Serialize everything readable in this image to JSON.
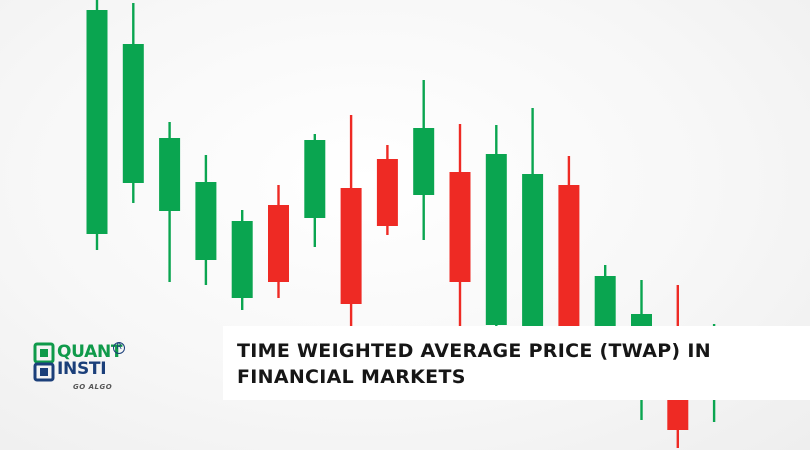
{
  "banner": {
    "title_line1": "TIME WEIGHTED AVERAGE PRICE (TWAP) IN",
    "title_line2": "FINANCIAL MARKETS"
  },
  "logo": {
    "word1": "QUANT",
    "word2": "INSTI",
    "tagline": "GO ALGO",
    "registered": "R"
  },
  "colors": {
    "bull": "#0aa550",
    "bear": "#ee2a24",
    "logo_green": "#0f9a4a",
    "logo_blue": "#1b3f7a",
    "title_text": "#161616"
  },
  "chart_data": {
    "type": "candlestick",
    "ylim": [
      0,
      450
    ],
    "candles": [
      {
        "dir": "up",
        "open": 216,
        "close": 440,
        "high": 460,
        "low": 200
      },
      {
        "dir": "up",
        "open": 267,
        "close": 406,
        "high": 447,
        "low": 247
      },
      {
        "dir": "up",
        "open": 239,
        "close": 312,
        "high": 328,
        "low": 168
      },
      {
        "dir": "up",
        "open": 190,
        "close": 268,
        "high": 295,
        "low": 165
      },
      {
        "dir": "up",
        "open": 152,
        "close": 229,
        "high": 240,
        "low": 140
      },
      {
        "dir": "down",
        "open": 245,
        "close": 168,
        "high": 265,
        "low": 152
      },
      {
        "dir": "up",
        "open": 232,
        "close": 310,
        "high": 316,
        "low": 203
      },
      {
        "dir": "down",
        "open": 262,
        "close": 146,
        "high": 335,
        "low": 90
      },
      {
        "dir": "down",
        "open": 291,
        "close": 224,
        "high": 305,
        "low": 215
      },
      {
        "dir": "up",
        "open": 255,
        "close": 322,
        "high": 370,
        "low": 210
      },
      {
        "dir": "down",
        "open": 278,
        "close": 168,
        "high": 326,
        "low": 80
      },
      {
        "dir": "up",
        "open": 125,
        "close": 296,
        "high": 325,
        "low": 90
      },
      {
        "dir": "up",
        "open": 90,
        "close": 276,
        "high": 342,
        "low": 65
      },
      {
        "dir": "down",
        "open": 265,
        "close": 95,
        "high": 294,
        "low": 55
      },
      {
        "dir": "up",
        "open": 120,
        "close": 174,
        "high": 185,
        "low": 100
      },
      {
        "dir": "up",
        "open": 97,
        "close": 136,
        "high": 170,
        "low": 30
      },
      {
        "dir": "down",
        "open": 82,
        "close": 20,
        "high": 165,
        "low": 2
      },
      {
        "dir": "up",
        "open": 70,
        "close": 112,
        "high": 126,
        "low": 28
      }
    ]
  }
}
